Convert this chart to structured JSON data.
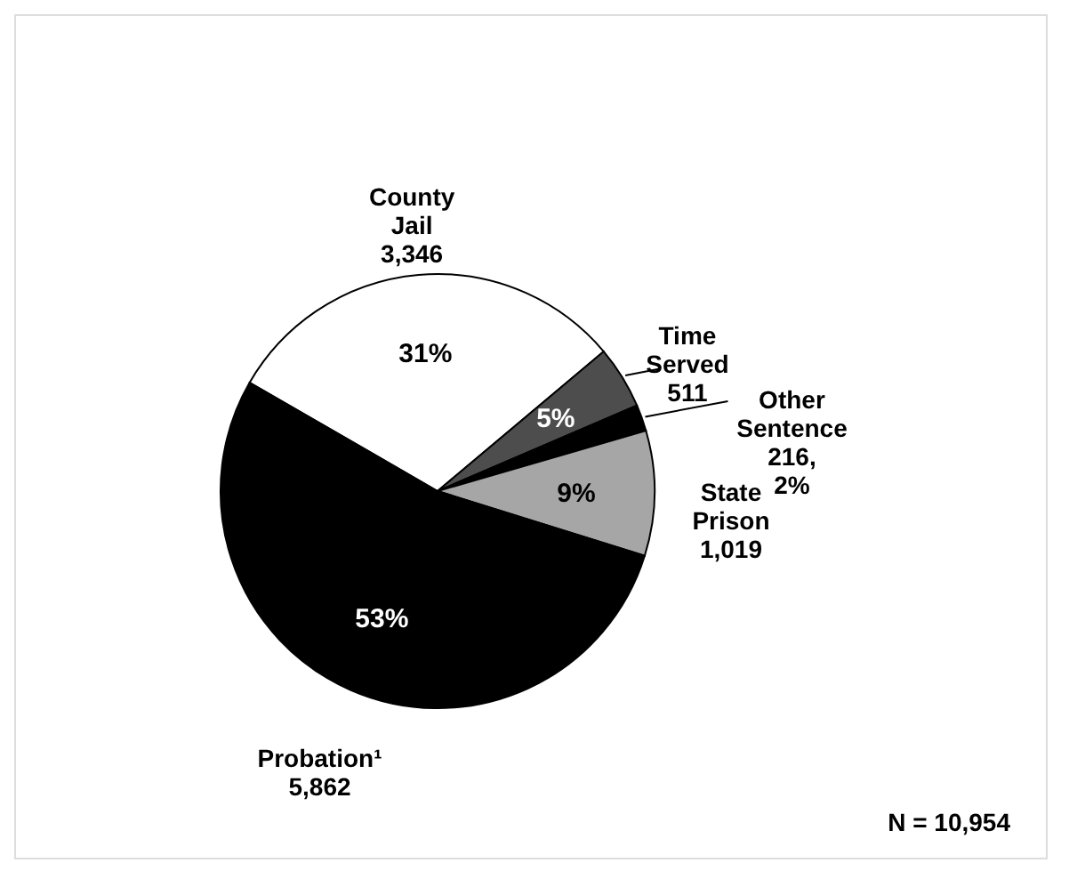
{
  "chart_data": {
    "type": "pie",
    "categories": [
      "County Jail",
      "Time Served",
      "Other Sentence",
      "State Prison",
      "Probation¹"
    ],
    "values": [
      3346,
      511,
      216,
      1019,
      5862
    ],
    "colors": [
      "#ffffff",
      "#4d4d4d",
      "#000000",
      "#a6a6a6",
      "#000000"
    ],
    "value_labels": [
      "3,346",
      "511",
      "216, 2%",
      "1,019",
      "5,862"
    ],
    "annotations": [
      {
        "text": "31%",
        "x": "County Jail"
      },
      {
        "text": "5%",
        "x": "Time Served"
      },
      {
        "text": "9%",
        "x": "State Prison"
      },
      {
        "text": "53%",
        "x": "Probation¹"
      },
      "N = 10,954"
    ]
  }
}
